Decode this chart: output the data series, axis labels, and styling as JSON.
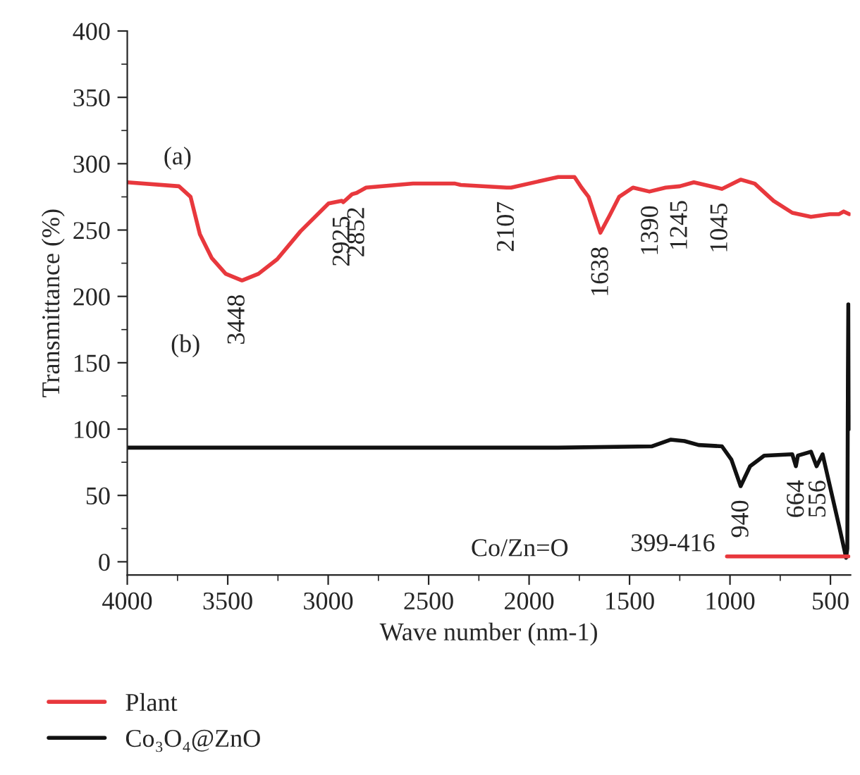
{
  "chart_data": {
    "type": "line",
    "xlabel": "Wave number (nm-1)",
    "ylabel": "Transmittance (%)",
    "xlim": [
      4000,
      400
    ],
    "ylim": [
      -10,
      400
    ],
    "xticks": [
      4000,
      3500,
      3000,
      2500,
      2000,
      1500,
      1000,
      500
    ],
    "yticks": [
      0,
      50,
      100,
      150,
      200,
      250,
      300,
      350,
      400
    ],
    "grid": false,
    "legend": "bottom left",
    "line_style": "solid",
    "marker": "none",
    "series": [
      {
        "name": "Plant",
        "color": "#e8383d",
        "x": [
          4000,
          3743,
          3685,
          3639,
          3580,
          3510,
          3429,
          3347,
          3254,
          3138,
          2998,
          2932,
          2925,
          2881,
          2858,
          2811,
          2578,
          2368,
          2340,
          2112,
          2089,
          1855,
          1774,
          1739,
          1704,
          1645,
          1599,
          1552,
          1483,
          1401,
          1320,
          1250,
          1180,
          1040,
          947,
          877,
          783,
          690,
          597,
          503,
          457,
          434,
          406
        ],
        "values": [
          286,
          283,
          275,
          247,
          229,
          217,
          212,
          217,
          228,
          249,
          270,
          272,
          271,
          277,
          278,
          282,
          285,
          285,
          284,
          282,
          282,
          290,
          290,
          282,
          275,
          248,
          261,
          275,
          282,
          279,
          282,
          283,
          286,
          281,
          288,
          285,
          272,
          263,
          260,
          262,
          262,
          264,
          262
        ]
      },
      {
        "name": "Co₃O₄@ZnO",
        "color": "#111111",
        "x": [
          4000,
          2322,
          1855,
          1390,
          1296,
          1227,
          1156,
          1040,
          993,
          947,
          900,
          830,
          690,
          672,
          662,
          597,
          569,
          539,
          457,
          422,
          416,
          413,
          411,
          408
        ],
        "values": [
          86,
          86,
          86,
          87,
          92,
          91,
          88,
          87,
          77,
          57,
          72,
          80,
          81,
          72,
          80,
          83,
          72,
          81,
          27,
          3,
          10,
          140,
          194,
          100
        ]
      },
      {
        "color": "#e8383d",
        "x": [
          1015,
          411
        ],
        "values": [
          4,
          4
        ]
      }
    ],
    "annotations": [
      {
        "text": "3448",
        "x": 3448,
        "y": 212
      },
      {
        "text": "2925",
        "x": 2925,
        "y": 271
      },
      {
        "text": "2852",
        "x": 2852,
        "y": 278
      },
      {
        "text": "2107",
        "x": 2107,
        "y": 282
      },
      {
        "text": "1638",
        "x": 1638,
        "y": 248
      },
      {
        "text": "1390",
        "x": 1390,
        "y": 279
      },
      {
        "text": "1245",
        "x": 1245,
        "y": 283
      },
      {
        "text": "1045",
        "x": 1045,
        "y": 281
      },
      {
        "text": "940",
        "x": 940,
        "y": 57
      },
      {
        "text": "664",
        "x": 664,
        "y": 72
      },
      {
        "text": "556",
        "x": 556,
        "y": 72
      },
      "(a)",
      "(b)",
      "Co/Zn=O",
      {
        "text": "399-416",
        "x": 1015,
        "y": 4
      }
    ]
  }
}
